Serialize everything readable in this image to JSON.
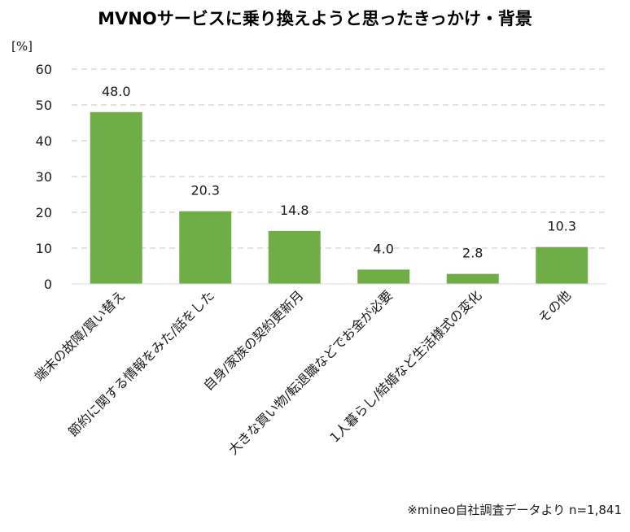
{
  "chart_data": {
    "type": "bar",
    "title": "MVNOサービスに乗り換えようと思ったきっかけ・背景",
    "ylabel": "[%]",
    "xlabel": "",
    "ylim": [
      0,
      60
    ],
    "yticks": [
      0,
      10,
      20,
      30,
      40,
      50,
      60
    ],
    "grid": true,
    "categories": [
      "端末の故障/買い替え",
      "節約に関する情報をみた/話をした",
      "自身/家族の契約更新月",
      "大きな買い物/転退職などでお金が必要",
      "1人暮らし/結婚など生活様式の変化",
      "その他"
    ],
    "values": [
      48.0,
      20.3,
      14.8,
      4.0,
      2.8,
      10.3
    ],
    "data_labels": [
      "48.0",
      "20.3",
      "14.8",
      "4.0",
      "2.8",
      "10.3"
    ],
    "bar_color": "#70AD47",
    "grid_color": "#D9D9D9",
    "note": "※mineo自社調査データより n=1,841"
  }
}
